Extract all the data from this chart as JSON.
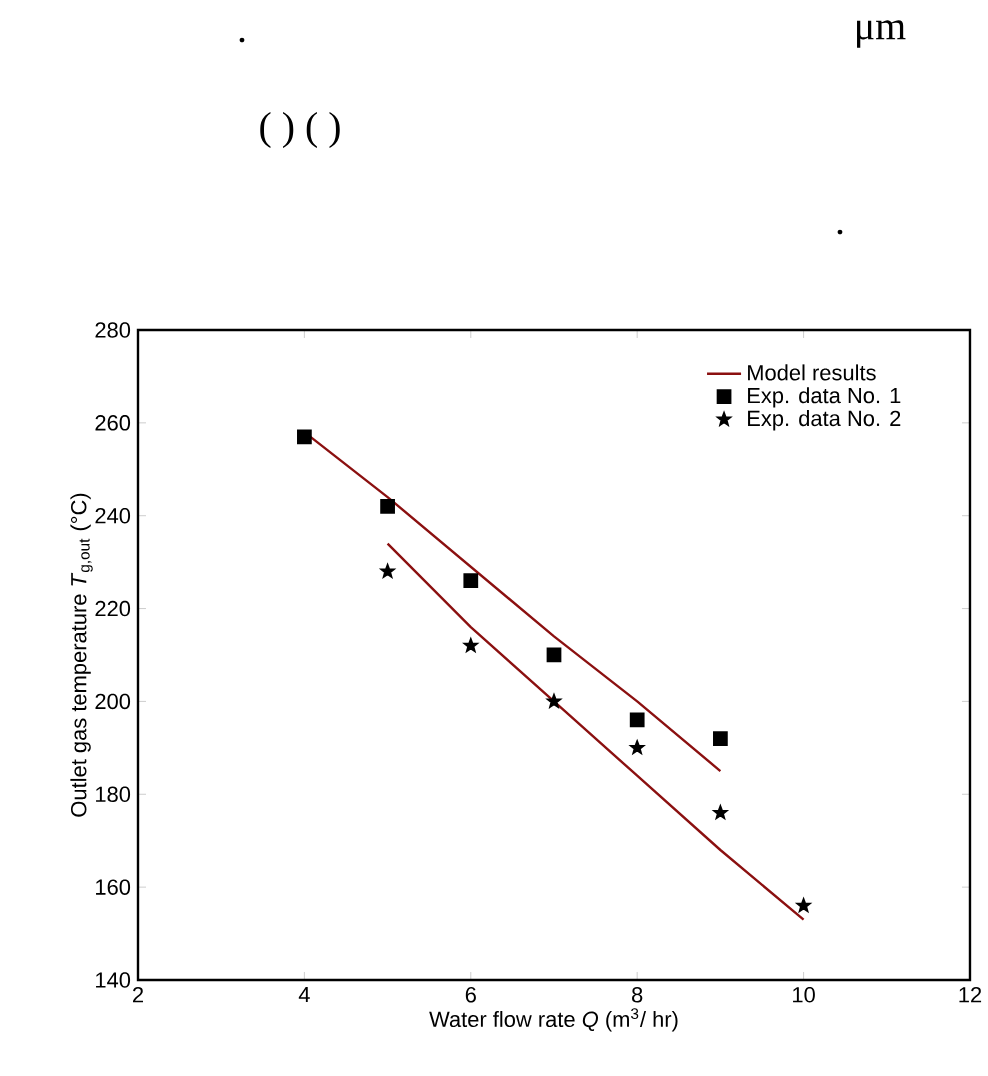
{
  "chart_data": {
    "type": "line",
    "xlabel": "Water flow rate *Q* (m$^{3}$/ hr)",
    "ylabel": "Outlet gas temperature *T*$_{g,out}$ (°C)",
    "annotations": [
      ".",
      "μm",
      "( )  ( )",
      "."
    ],
    "xlim": [
      2,
      12
    ],
    "ylim": [
      140,
      280
    ],
    "xticks": [
      2,
      4,
      6,
      8,
      10,
      12
    ],
    "yticks": [
      140,
      160,
      180,
      200,
      220,
      240,
      260,
      280
    ],
    "grid": false,
    "legend": "top right",
    "series": [
      {
        "name": "Model results",
        "color": "#8b1010",
        "marker": "none",
        "line_style": "solid",
        "x": [
          4,
          5,
          6,
          7,
          8,
          9
        ],
        "values": [
          258,
          244,
          229,
          214,
          200,
          185
        ]
      },
      {
        "color": "#8b1010",
        "marker": "none",
        "line_style": "solid",
        "x": [
          5,
          6,
          7,
          8,
          9,
          10
        ],
        "values": [
          234,
          216,
          200,
          184,
          168,
          153
        ]
      },
      {
        "name": "Exp. data No. 1",
        "type": "scatter",
        "color": "#000000",
        "marker": "square",
        "x": [
          4,
          5,
          6,
          7,
          8,
          9
        ],
        "values": [
          257,
          242,
          226,
          210,
          196,
          192
        ]
      },
      {
        "name": "Exp. data No. 2",
        "type": "scatter",
        "color": "#000000",
        "marker": "star",
        "x": [
          5,
          6,
          7,
          8,
          9,
          10
        ],
        "values": [
          228,
          212,
          200,
          190,
          176,
          156
        ]
      }
    ]
  }
}
